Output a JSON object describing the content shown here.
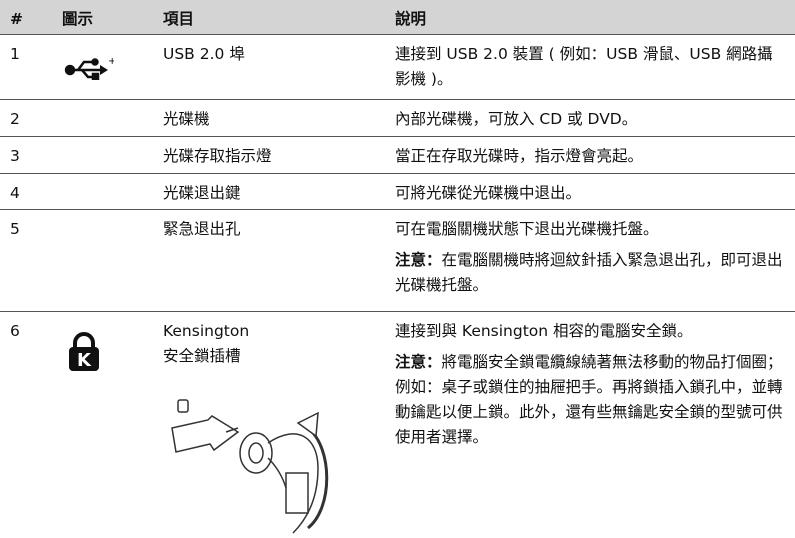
{
  "table": {
    "header": [
      "#",
      "圖示",
      "項目",
      "說明"
    ],
    "rows": [
      {
        "num": "1",
        "item": [
          "USB 2.0 埠"
        ],
        "desc": "連接到 USB 2.0 裝置 ( 例如：USB 滑鼠、USB 網路攝影機 )。"
      },
      {
        "num": "2",
        "item": [
          "光碟機"
        ],
        "desc": "內部光碟機，可放入 CD 或 DVD。"
      },
      {
        "num": "3",
        "item": [
          "光碟存取指示燈"
        ],
        "desc": "當正在存取光碟時，指示燈會亮起。"
      },
      {
        "num": "4",
        "item": [
          "光碟退出鍵"
        ],
        "desc": "可將光碟從光碟機中退出。"
      },
      {
        "num": "5",
        "item": [
          "緊急退出孔"
        ],
        "desc": "可在電腦關機狀態下退出光碟機托盤。",
        "note": {
          "label": "注意：",
          "text": "在電腦關機時將迴紋針插入緊急退出孔，即可退出光碟機托盤。"
        }
      },
      {
        "num": "6",
        "item": [
          "Kensington",
          "安全鎖插槽"
        ],
        "desc": "連接到與 Kensington 相容的電腦安全鎖。",
        "note": {
          "label": "注意：",
          "text": "將電腦安全鎖電纜線繞著無法移動的物品打個圈；例如：桌子或鎖住的抽屜把手。再將鎖插入鎖孔中，並轉動鑰匙以便上鎖。此外，還有些無鑰匙安全鎖的型號可供使用者選擇。"
        }
      }
    ]
  }
}
